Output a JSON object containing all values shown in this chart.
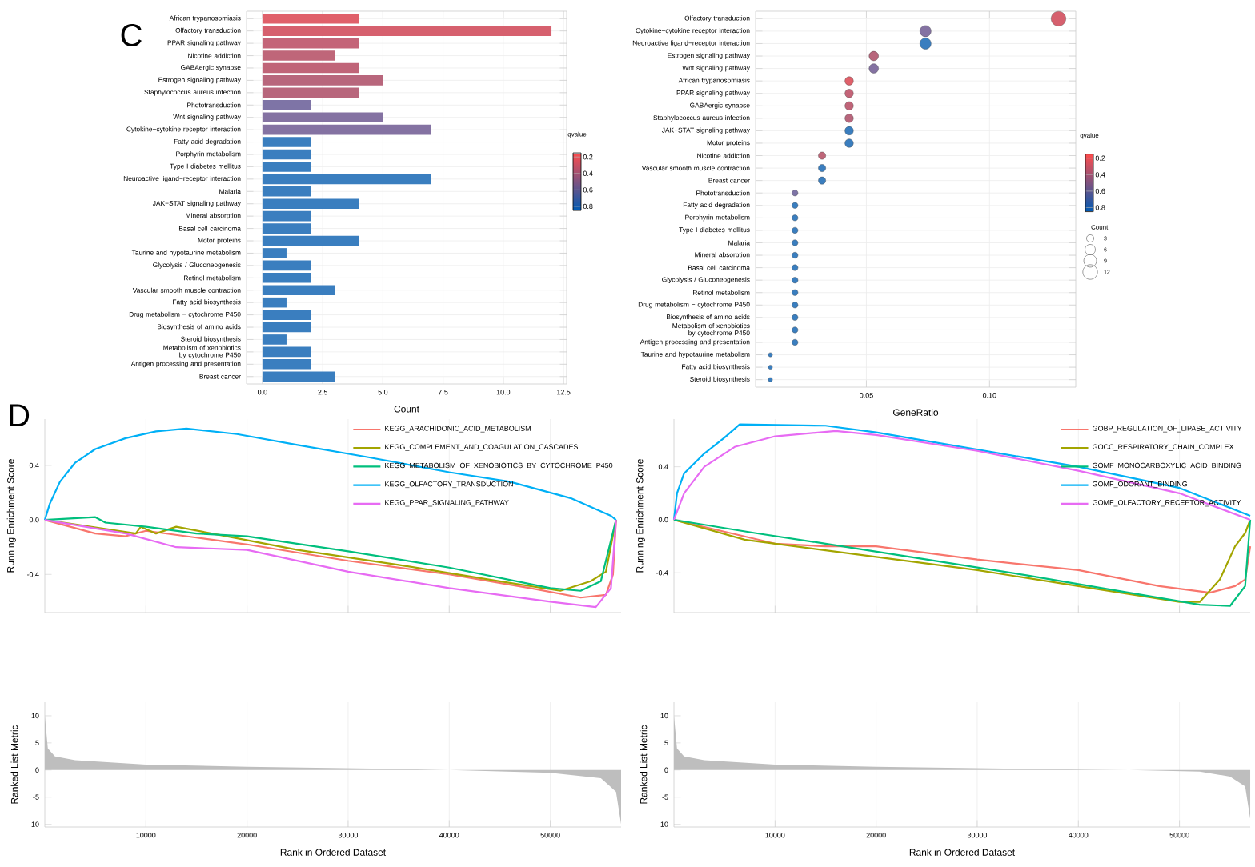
{
  "chart_data": [
    {
      "type": "bar",
      "title": "C",
      "orientation": "horizontal",
      "xlabel": "Count",
      "clabel": "qvalue",
      "grid": true,
      "categories": [
        "African trypanosomiasis",
        "Olfactory transduction",
        "PPAR signaling pathway",
        "Nicotine addiction",
        "GABAergic synapse",
        "Estrogen signaling pathway",
        "Staphylococcus aureus infection",
        "Phototransduction",
        "Wnt signaling pathway",
        "Cytokine−cytokine receptor interaction",
        "Fatty acid degradation",
        "Porphyrin metabolism",
        "Type I diabetes mellitus",
        "Neuroactive ligand−receptor interaction",
        "Malaria",
        "JAK−STAT signaling pathway",
        "Mineral absorption",
        "Basal cell carcinoma",
        "Motor proteins",
        "Taurine and hypotaurine metabolism",
        "Glycolysis / Gluconeogenesis",
        "Retinol metabolism",
        "Vascular smooth muscle contraction",
        "Fatty acid biosynthesis",
        "Drug metabolism − cytochrome P450",
        "Biosynthesis of amino acids",
        "Steroid biosynthesis",
        "Metabolism of xenobiotics by cytochrome P450",
        "Antigen processing and presentation",
        "Breast cancer"
      ],
      "values": [
        4,
        12,
        4,
        3,
        4,
        5,
        4,
        2,
        5,
        7,
        2,
        2,
        2,
        7,
        2,
        4,
        2,
        2,
        4,
        1,
        2,
        2,
        3,
        1,
        2,
        2,
        1,
        2,
        2,
        3
      ],
      "colors": [
        "#e0606a",
        "#d6606e",
        "#c46478",
        "#bf6679",
        "#c06478",
        "#b8667c",
        "#b8667c",
        "#7e74a6",
        "#8472a2",
        "#8472a2",
        "#3a7ebf",
        "#3a7ebf",
        "#3a7ebf",
        "#3a7ebf",
        "#3a7ebf",
        "#3a7ebf",
        "#3a7ebf",
        "#3a7ebf",
        "#3a7ebf",
        "#3a7ebf",
        "#3a7ebf",
        "#3a7ebf",
        "#3a7ebf",
        "#3a7ebf",
        "#3a7ebf",
        "#3a7ebf",
        "#3a7ebf",
        "#3a7ebf",
        "#3a7ebf",
        "#3a7ebf"
      ],
      "xlim": [
        -0.66,
        12.63
      ],
      "xticks": [
        {
          "value": 0,
          "label": "0.0"
        },
        2.5,
        {
          "value": 5,
          "label": "5.0"
        },
        7.5,
        {
          "value": 10,
          "label": "10.0"
        },
        12.5
      ],
      "clim": [
        0.15,
        0.85
      ],
      "cticks": [
        0.2,
        0.4,
        0.6,
        0.8
      ]
    },
    {
      "type": "bubble",
      "orientation": "horizontal",
      "xlabel": "GeneRatio",
      "clabel": "qvalue",
      "legend_title": "Count",
      "grid": true,
      "marker": "circle",
      "categories": [
        "Olfactory transduction",
        "Cytokine−cytokine receptor interaction",
        "Neuroactive ligand−receptor interaction",
        "Estrogen signaling pathway",
        "Wnt signaling pathway",
        "African trypanosomiasis",
        "PPAR signaling pathway",
        "GABAergic synapse",
        "Staphylococcus aureus infection",
        "JAK−STAT signaling pathway",
        "Motor proteins",
        "Nicotine addiction",
        "Vascular smooth muscle contraction",
        "Breast cancer",
        "Phototransduction",
        "Fatty acid degradation",
        "Porphyrin metabolism",
        "Type I diabetes mellitus",
        "Malaria",
        "Mineral absorption",
        "Basal cell carcinoma",
        "Glycolysis / Gluconeogenesis",
        "Retinol metabolism",
        "Drug metabolism − cytochrome P450",
        "Biosynthesis of amino acids",
        "Metabolism of xenobiotics by cytochrome P450",
        "Antigen processing and presentation",
        "Taurine and hypotaurine metabolism",
        "Fatty acid biosynthesis",
        "Steroid biosynthesis"
      ],
      "values": [
        0.128,
        0.074,
        0.074,
        0.053,
        0.053,
        0.043,
        0.043,
        0.043,
        0.043,
        0.043,
        0.043,
        0.032,
        0.032,
        0.032,
        0.021,
        0.021,
        0.021,
        0.021,
        0.021,
        0.021,
        0.021,
        0.021,
        0.021,
        0.021,
        0.021,
        0.021,
        0.021,
        0.011,
        0.011,
        0.011
      ],
      "sizes": [
        12,
        7,
        7,
        5,
        5,
        4,
        4,
        4,
        4,
        4,
        4,
        3,
        3,
        3,
        2,
        2,
        2,
        2,
        2,
        2,
        2,
        2,
        2,
        2,
        2,
        2,
        2,
        1,
        1,
        1
      ],
      "size_legend": [
        3,
        6,
        9,
        12
      ],
      "colors": [
        "#d6606e",
        "#8472a2",
        "#3a7ebf",
        "#b8667c",
        "#8472a2",
        "#e0606a",
        "#c46478",
        "#c06478",
        "#b8667c",
        "#3a7ebf",
        "#3a7ebf",
        "#bf6679",
        "#3a7ebf",
        "#3a7ebf",
        "#7e74a6",
        "#3a7ebf",
        "#3a7ebf",
        "#3a7ebf",
        "#3a7ebf",
        "#3a7ebf",
        "#3a7ebf",
        "#3a7ebf",
        "#3a7ebf",
        "#3a7ebf",
        "#3a7ebf",
        "#3a7ebf",
        "#3a7ebf",
        "#3a7ebf",
        "#3a7ebf",
        "#3a7ebf"
      ],
      "xlim": [
        0.005,
        0.135
      ],
      "xticks": [
        0.05,
        {
          "value": 0.1,
          "label": "0.10"
        }
      ],
      "clim": [
        0.15,
        0.85
      ],
      "cticks": [
        0.2,
        0.4,
        0.6,
        0.8
      ]
    },
    {
      "type": "line",
      "title": "D",
      "ylabel": "Running Enrichment Score",
      "grid": "x",
      "legend": "top right",
      "tick_labels": "y",
      "xlim": [
        0,
        57000
      ],
      "xticks": [
        10000,
        20000,
        30000,
        40000,
        50000
      ],
      "ylim": [
        -0.68,
        0.74
      ],
      "yticks": [
        -0.4,
        {
          "value": 0,
          "label": "0.0"
        },
        0.4
      ],
      "series": [
        {
          "name": "KEGG_ARACHIDONIC_ACID_METABOLISM",
          "color": "#f8766d",
          "x": [
            0,
            5000,
            8000,
            10000,
            15000,
            20000,
            30000,
            40000,
            48000,
            53000,
            55500,
            56200,
            56500
          ],
          "values": [
            0,
            -0.1,
            -0.12,
            -0.08,
            -0.13,
            -0.18,
            -0.3,
            -0.4,
            -0.5,
            -0.57,
            -0.55,
            -0.4,
            0
          ]
        },
        {
          "name": "KEGG_COMPLEMENT_AND_COAGULATION_CASCADES",
          "color": "#a3a500",
          "x": [
            0,
            9000,
            9500,
            11000,
            13000,
            18000,
            25000,
            35000,
            45000,
            51000,
            54000,
            55500,
            56500
          ],
          "values": [
            0,
            -0.1,
            -0.05,
            -0.1,
            -0.05,
            -0.12,
            -0.22,
            -0.33,
            -0.45,
            -0.52,
            -0.45,
            -0.38,
            0
          ]
        },
        {
          "name": "KEGG_METABOLISM_OF_XENOBIOTICS_BY_CYTOCHROME_P450",
          "color": "#00bf7d",
          "x": [
            0,
            5000,
            6000,
            10000,
            15000,
            20000,
            30000,
            40000,
            50000,
            53000,
            55000,
            56500
          ],
          "values": [
            0,
            0.02,
            -0.02,
            -0.05,
            -0.1,
            -0.12,
            -0.23,
            -0.35,
            -0.5,
            -0.52,
            -0.45,
            0
          ]
        },
        {
          "name": "KEGG_OLFACTORY_TRANSDUCTION",
          "color": "#00b0f6",
          "x": [
            0,
            500,
            1500,
            3000,
            5000,
            8000,
            11000,
            14000,
            19000,
            25000,
            32000,
            40000,
            46000,
            52000,
            56000,
            56500
          ],
          "values": [
            0,
            0.12,
            0.28,
            0.42,
            0.52,
            0.6,
            0.65,
            0.67,
            0.63,
            0.55,
            0.46,
            0.35,
            0.28,
            0.16,
            0.03,
            0
          ]
        },
        {
          "name": "KEGG_PPAR_SIGNALING_PATHWAY",
          "color": "#e76bf3",
          "x": [
            0,
            8000,
            13000,
            20000,
            30000,
            40000,
            50000,
            54500,
            56000,
            56500
          ],
          "values": [
            0,
            -0.1,
            -0.2,
            -0.22,
            -0.38,
            -0.5,
            -0.6,
            -0.64,
            -0.5,
            0
          ]
        }
      ]
    },
    {
      "type": "area",
      "ylabel": "Ranked List Metric",
      "xlabel": "Rank in Ordered Dataset",
      "grid": "x",
      "color": "#bebebe",
      "xlim": [
        0,
        57000
      ],
      "xticks": [
        10000,
        20000,
        30000,
        40000,
        50000
      ],
      "ylim": [
        -10.5,
        12.5
      ],
      "yticks": [
        -10,
        -5,
        0,
        5,
        10
      ],
      "x": [
        0,
        300,
        1000,
        3000,
        10000,
        20000,
        35000,
        40000,
        50000,
        55000,
        56500,
        57000
      ],
      "values": [
        10,
        4,
        2.5,
        1.8,
        1,
        0.6,
        0.2,
        0,
        -0.5,
        -1.5,
        -4,
        -10
      ]
    },
    {
      "type": "line",
      "ylabel": "Running Enrichment Score",
      "grid": "x",
      "legend": "top right",
      "tick_labels": "y",
      "xlim": [
        0,
        57000
      ],
      "xticks": [
        10000,
        20000,
        30000,
        40000,
        50000
      ],
      "ylim": [
        -0.7,
        0.76
      ],
      "yticks": [
        -0.4,
        {
          "value": 0,
          "label": "0.0"
        },
        0.4
      ],
      "series": [
        {
          "name": "GOBP_REGULATION_OF_LIPASE_ACTIVITY",
          "color": "#f8766d",
          "x": [
            0,
            10000,
            15000,
            20000,
            30000,
            40000,
            48000,
            53000,
            55500,
            56500,
            57000
          ],
          "values": [
            0,
            -0.18,
            -0.2,
            -0.2,
            -0.3,
            -0.38,
            -0.5,
            -0.55,
            -0.5,
            -0.45,
            -0.2
          ]
        },
        {
          "name": "GOCC_RESPIRATORY_CHAIN_COMPLEX",
          "color": "#a3a500",
          "x": [
            0,
            7000,
            20000,
            30000,
            40000,
            50000,
            52000,
            54000,
            55500,
            56500,
            57000
          ],
          "values": [
            0,
            -0.15,
            -0.28,
            -0.38,
            -0.5,
            -0.62,
            -0.62,
            -0.45,
            -0.2,
            -0.1,
            0
          ]
        },
        {
          "name": "GOMF_MONOCARBOXYLIC_ACID_BINDING",
          "color": "#00bf7d",
          "x": [
            0,
            8000,
            15000,
            25000,
            35000,
            45000,
            52000,
            55000,
            56500,
            57000
          ],
          "values": [
            0,
            -0.1,
            -0.18,
            -0.3,
            -0.42,
            -0.55,
            -0.64,
            -0.65,
            -0.5,
            0
          ]
        },
        {
          "name": "GOMF_ODORANT_BINDING",
          "color": "#00b0f6",
          "x": [
            0,
            300,
            1000,
            3000,
            5000,
            6500,
            15000,
            20000,
            30000,
            40000,
            50000,
            57000
          ],
          "values": [
            0,
            0.2,
            0.35,
            0.5,
            0.62,
            0.72,
            0.71,
            0.66,
            0.53,
            0.4,
            0.24,
            0.03
          ]
        },
        {
          "name": "GOMF_OLFACTORY_RECEPTOR_ACTIVITY",
          "color": "#e76bf3",
          "x": [
            0,
            1000,
            3000,
            6000,
            10000,
            16000,
            20000,
            30000,
            40000,
            50000,
            57000
          ],
          "values": [
            0,
            0.2,
            0.4,
            0.55,
            0.63,
            0.67,
            0.64,
            0.52,
            0.37,
            0.2,
            0
          ]
        }
      ]
    },
    {
      "type": "area",
      "ylabel": "Ranked List Metric",
      "xlabel": "Rank in Ordered Dataset",
      "grid": "x",
      "color": "#bebebe",
      "xlim": [
        0,
        57000
      ],
      "xticks": [
        10000,
        20000,
        30000,
        40000,
        50000
      ],
      "ylim": [
        -10.5,
        12.5
      ],
      "yticks": [
        -10,
        -5,
        0,
        5,
        10
      ],
      "x": [
        0,
        300,
        1000,
        3000,
        10000,
        20000,
        35000,
        45000,
        52000,
        55000,
        56500,
        57000
      ],
      "values": [
        10,
        4,
        2.5,
        1.8,
        1,
        0.6,
        0.2,
        0,
        -0.3,
        -1.2,
        -3,
        -9
      ]
    }
  ]
}
